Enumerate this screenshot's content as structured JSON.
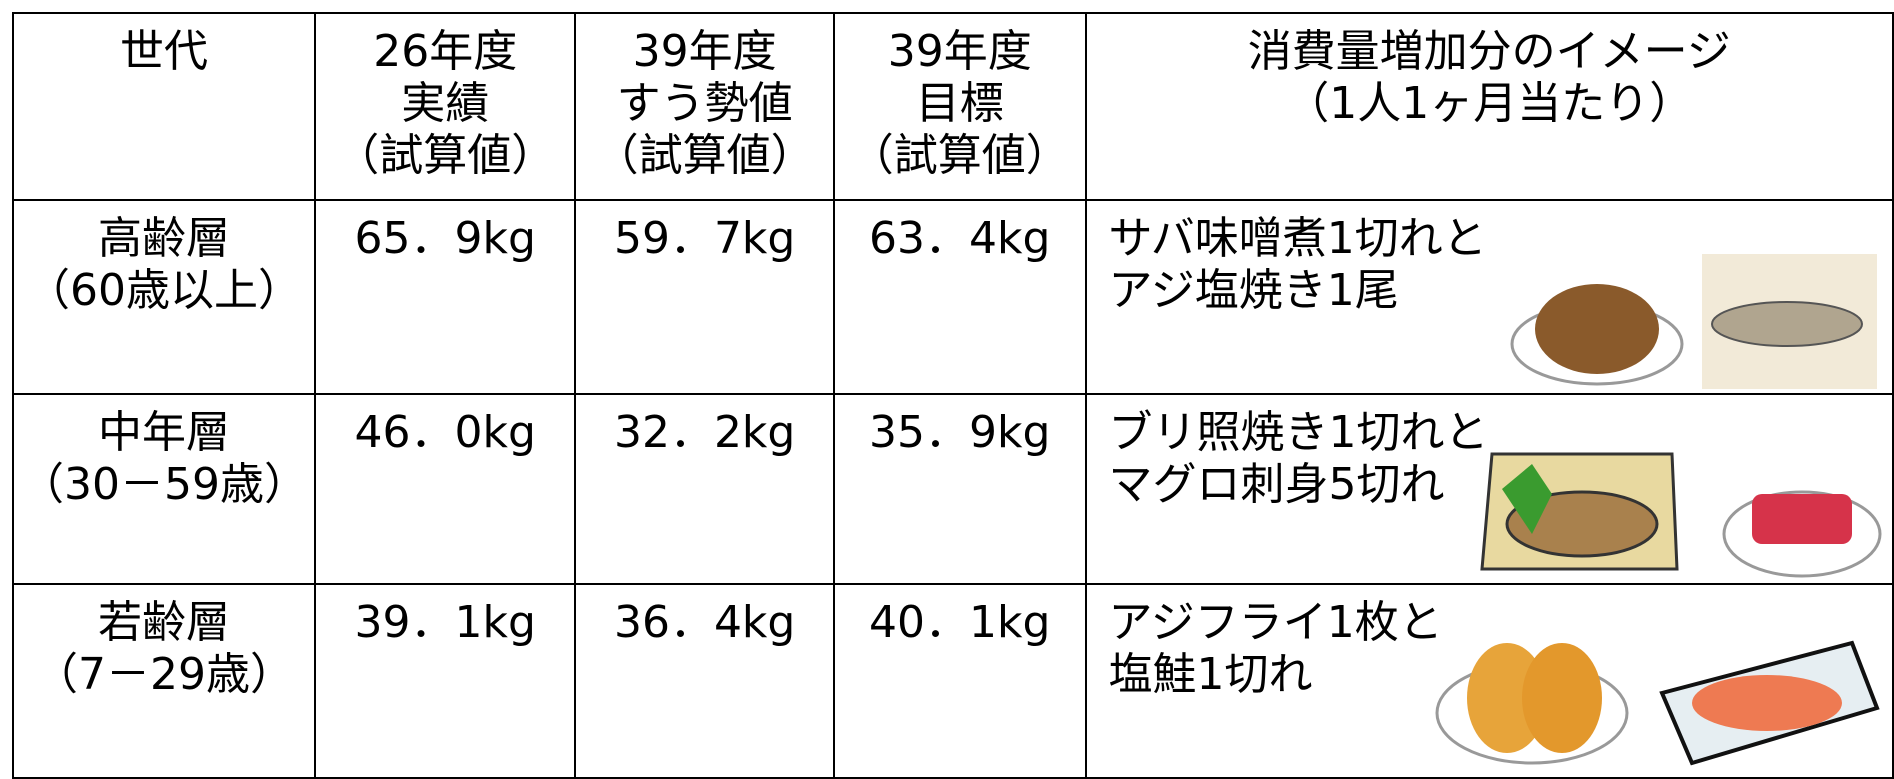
{
  "table": {
    "header": [
      [
        "世代"
      ],
      [
        "26年度",
        "実績",
        "（試算値）"
      ],
      [
        "39年度",
        "すう勢値",
        "（試算値）"
      ],
      [
        "39年度",
        "目標",
        "（試算値）"
      ],
      [
        "消費量増加分のイメージ",
        "（1人1ヶ月当たり）"
      ]
    ],
    "rows": [
      [
        [
          "高齢層",
          "（60歳以上）"
        ],
        "65．9kg",
        "59．7kg",
        "63．4kg",
        [
          "サバ味噌煮1切れと",
          "アジ塩焼き1尾"
        ]
      ],
      [
        [
          "中年層",
          "（30－59歳）"
        ],
        "46．0kg",
        "32．2kg",
        "35．9kg",
        [
          "ブリ照焼き1切れと",
          "マグロ刺身5切れ"
        ]
      ],
      [
        [
          "若齢層",
          "（7－29歳）"
        ],
        "39．1kg",
        "36．4kg",
        "40．1kg",
        [
          "アジフライ1枚と",
          "塩鮭1切れ"
        ]
      ]
    ]
  }
}
